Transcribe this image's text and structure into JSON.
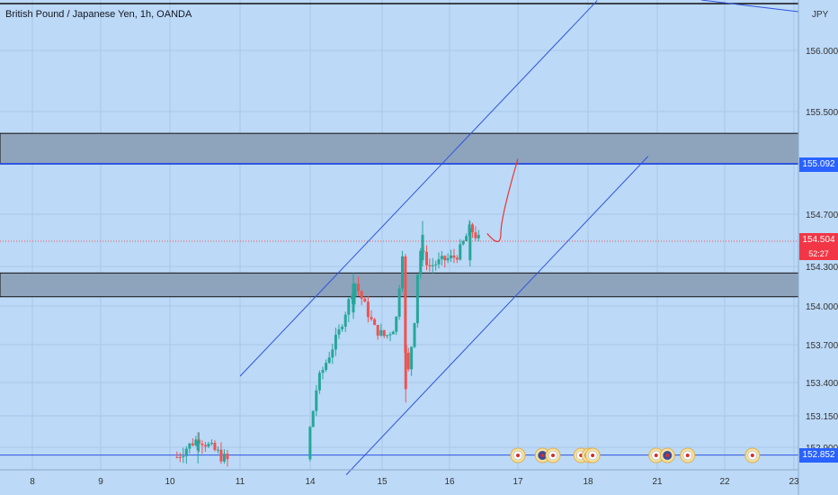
{
  "header": {
    "title": "British Pound / Japanese Yen, 1h, OANDA",
    "currency": "JPY"
  },
  "price_badges": {
    "resistance_level": "155.092",
    "last_price": "154.504",
    "countdown": "52:27",
    "support_level": "152.852"
  },
  "colors": {
    "background": "#bcd9f7",
    "bull": "#26a69a",
    "bear": "#ef5350",
    "channel": "#2f55e0",
    "zone_fill": "#8ea3bc",
    "projection": "#e53935"
  },
  "chart_data": {
    "type": "candlestick",
    "title": "British Pound / Japanese Yen, 1h, OANDA",
    "y_axis_ticks": [
      "156.000",
      "155.500",
      "154.700",
      "154.300",
      "154.000",
      "153.700",
      "153.400",
      "153.150",
      "152.900"
    ],
    "x_axis_ticks": [
      "8",
      "9",
      "10",
      "11",
      "14",
      "15",
      "16",
      "17",
      "18",
      "21",
      "22",
      "23"
    ],
    "last_price": 154.504,
    "resistance_zone": [
      155.092,
      155.33
    ],
    "support_zone": [
      154.07,
      154.25
    ],
    "support_line": 152.852,
    "top_line": 156.45,
    "channel": {
      "upper": [
        [
          11.0,
          153.45
        ],
        [
          18.4,
          156.48
        ]
      ],
      "lower": [
        [
          14.5,
          152.73
        ],
        [
          20.6,
          155.15
        ]
      ]
    },
    "projection": [
      [
        16.55,
        154.56
      ],
      [
        16.75,
        154.56
      ],
      [
        17.0,
        155.13
      ]
    ],
    "event_markers": [
      "17",
      "17.35",
      "17.5",
      "17.9",
      "18.05",
      "18.2",
      "20.95",
      "21.15",
      "21.45",
      "22.4"
    ],
    "candles_sample": [
      {
        "x": 10.4,
        "o": 152.88,
        "h": 153.02,
        "l": 152.8,
        "c": 152.95
      },
      {
        "x": 14.6,
        "o": 153.95,
        "h": 154.25,
        "l": 153.9,
        "c": 154.17
      },
      {
        "x": 15.35,
        "o": 153.7,
        "h": 154.0,
        "l": 153.25,
        "c": 153.35
      },
      {
        "x": 15.6,
        "o": 154.35,
        "h": 154.65,
        "l": 154.3,
        "c": 154.55
      },
      {
        "x": 16.3,
        "o": 154.35,
        "h": 154.65,
        "l": 154.3,
        "c": 154.6
      }
    ]
  }
}
